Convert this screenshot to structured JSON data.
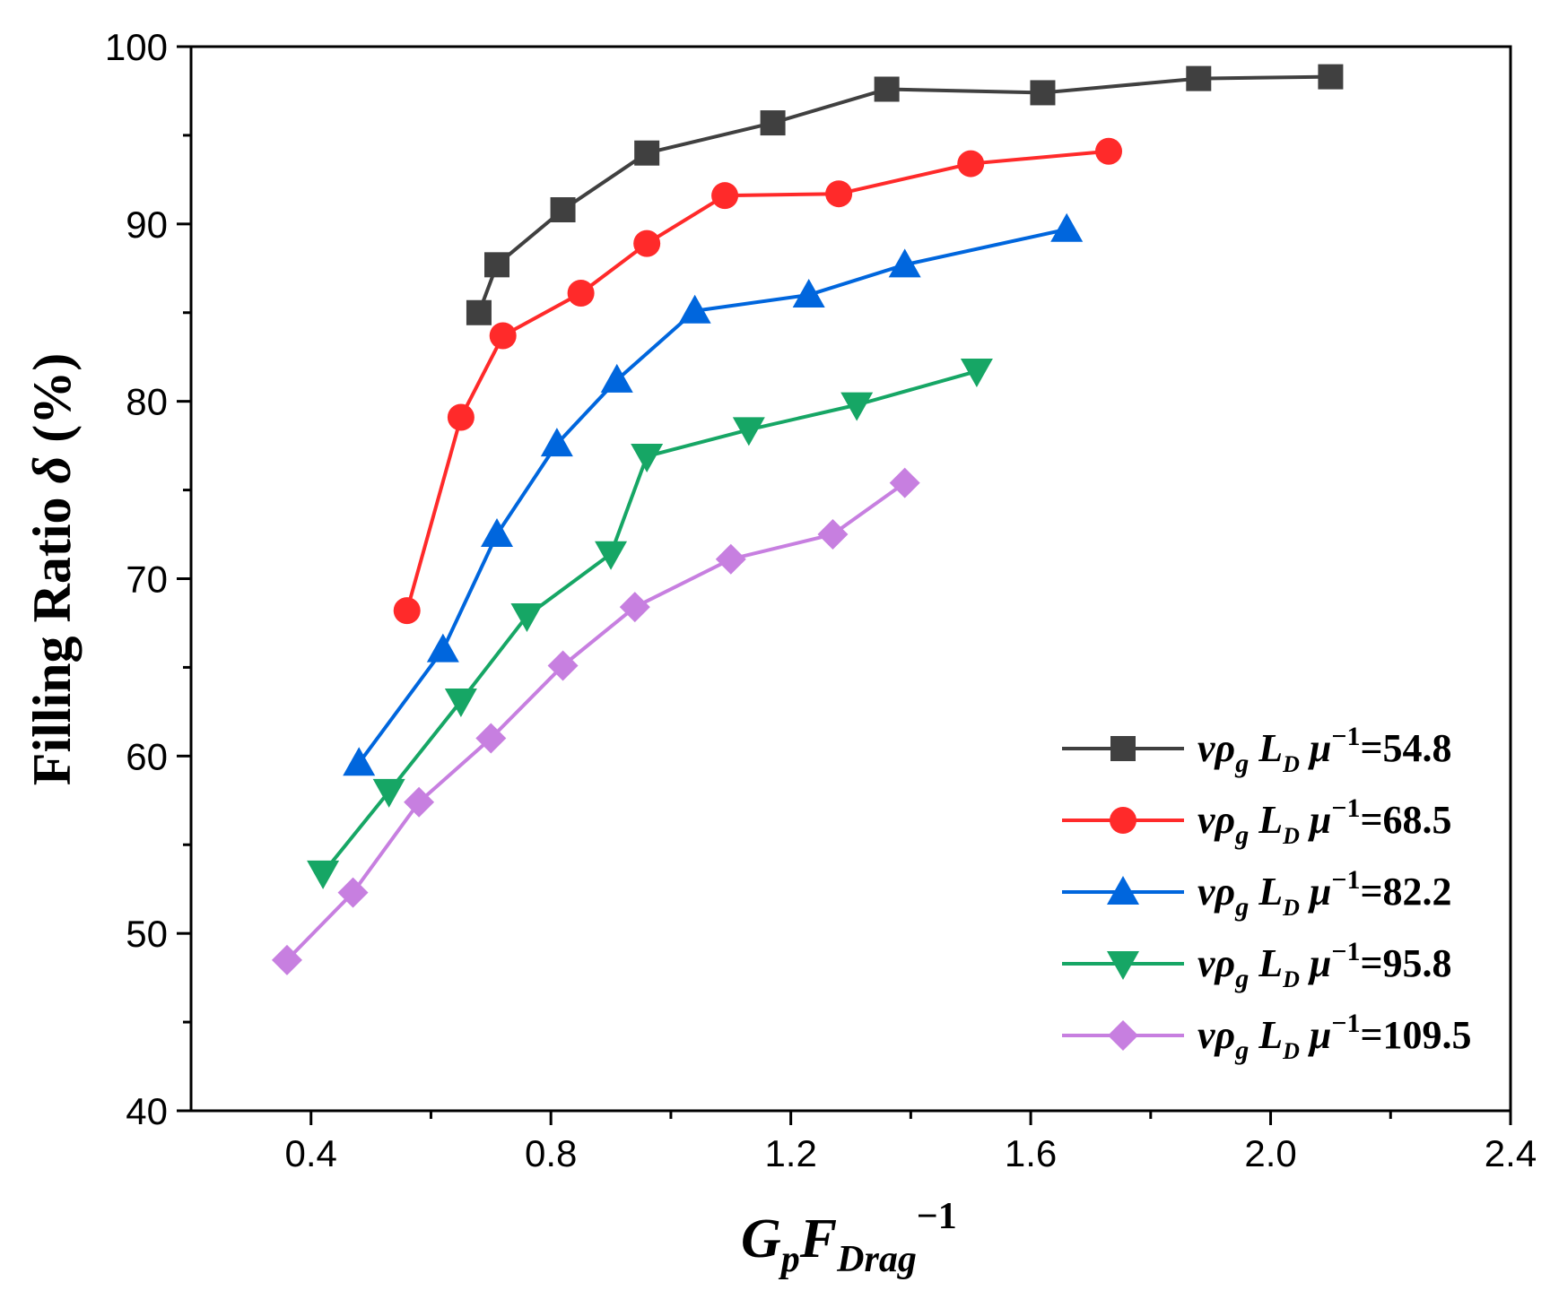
{
  "chart_data": {
    "type": "line",
    "title": "",
    "xlabel": {
      "main": "G",
      "sub1": "p",
      "main2": "F",
      "sub2": "Drag",
      "sup": "−1"
    },
    "ylabel": {
      "prefix": "Filling Ratio ",
      "symbol": "δ",
      "suffix": " (%)"
    },
    "xlim": [
      0.2,
      2.4
    ],
    "ylim": [
      40,
      100
    ],
    "xticks": [
      0.4,
      0.8,
      1.2,
      1.6,
      2.0,
      2.4
    ],
    "xtick_labels": [
      "0.4",
      "0.8",
      "1.2",
      "1.6",
      "2.0",
      "2.4"
    ],
    "xminor": [
      0.6,
      1.0,
      1.4,
      1.8,
      2.2
    ],
    "yticks": [
      40,
      50,
      60,
      70,
      80,
      90,
      100
    ],
    "ytick_labels": [
      "40",
      "50",
      "60",
      "70",
      "80",
      "90",
      "100"
    ],
    "yminor": [
      45,
      55,
      65,
      75,
      85,
      95
    ],
    "grid": false,
    "legend_position": "bottom-right",
    "series": [
      {
        "name": "54.8",
        "value_label": "=54.8",
        "color": "#404040",
        "marker": "square",
        "x": [
          0.68,
          0.71,
          0.82,
          0.96,
          1.17,
          1.36,
          1.62,
          1.88,
          2.1
        ],
        "y": [
          85.0,
          87.7,
          90.8,
          94.0,
          95.7,
          97.6,
          97.4,
          98.2,
          98.3
        ]
      },
      {
        "name": "68.5",
        "value_label": "=68.5",
        "color": "#ff2a2a",
        "marker": "circle",
        "x": [
          0.56,
          0.65,
          0.72,
          0.85,
          0.96,
          1.09,
          1.28,
          1.5,
          1.73
        ],
        "y": [
          68.2,
          79.1,
          83.7,
          86.1,
          88.9,
          91.6,
          91.7,
          93.4,
          94.1
        ]
      },
      {
        "name": "82.2",
        "value_label": "=82.2",
        "color": "#0066dd",
        "marker": "triangle-up",
        "x": [
          0.48,
          0.62,
          0.71,
          0.81,
          0.91,
          1.04,
          1.23,
          1.39,
          1.66
        ],
        "y": [
          59.6,
          66.0,
          72.5,
          77.6,
          81.2,
          85.1,
          86.0,
          87.7,
          89.7
        ]
      },
      {
        "name": "95.8",
        "value_label": "=95.8",
        "color": "#16a665",
        "marker": "triangle-down",
        "x": [
          0.42,
          0.53,
          0.65,
          0.76,
          0.9,
          0.96,
          1.13,
          1.31,
          1.51
        ],
        "y": [
          53.4,
          58.0,
          63.1,
          67.9,
          71.4,
          76.9,
          78.4,
          79.8,
          81.7
        ]
      },
      {
        "name": "109.5",
        "value_label": "=109.5",
        "color": "#c77fe0",
        "marker": "diamond",
        "x": [
          0.36,
          0.47,
          0.58,
          0.7,
          0.82,
          0.94,
          1.1,
          1.27,
          1.39
        ],
        "y": [
          48.5,
          52.3,
          57.4,
          61.0,
          65.1,
          68.4,
          71.1,
          72.5,
          75.4
        ]
      }
    ],
    "legend_label": {
      "v": "v",
      "rho": "ρ",
      "g": "g",
      "L": "L",
      "D": "D",
      "mu": "μ",
      "minus1": "−1"
    }
  }
}
